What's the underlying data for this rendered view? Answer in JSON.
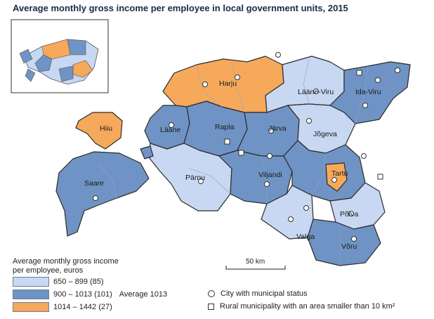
{
  "title": "Average monthly gross income per employee in local government units, 2015",
  "colors": {
    "low": "#c8d7f2",
    "mid": "#6f93c4",
    "high": "#f6a95a",
    "border": "#2b2b2b",
    "muni_border": "#8fa5c6"
  },
  "regions": [
    {
      "name": "Harju",
      "class": "high"
    },
    {
      "name": "Lääne-Viru",
      "class": "low"
    },
    {
      "name": "Ida-Viru",
      "class": "mid"
    },
    {
      "name": "Hiiu",
      "class": "high"
    },
    {
      "name": "Lääne",
      "class": "mid"
    },
    {
      "name": "Rapla",
      "class": "mid"
    },
    {
      "name": "Järva",
      "class": "mid"
    },
    {
      "name": "Jõgeva",
      "class": "low"
    },
    {
      "name": "Saare",
      "class": "mid"
    },
    {
      "name": "Pärnu",
      "class": "low"
    },
    {
      "name": "Viljandi",
      "class": "mid"
    },
    {
      "name": "Tartu",
      "class": "high"
    },
    {
      "name": "Põlva",
      "class": "low"
    },
    {
      "name": "Valga",
      "class": "low"
    },
    {
      "name": "Võru",
      "class": "mid"
    }
  ],
  "legend": {
    "heading_line1": "Average monthly gross income",
    "heading_line2": "per employee, euros",
    "items": [
      {
        "label": "650 –  899  (85)",
        "class": "low"
      },
      {
        "label": "900 – 1013 (101)",
        "class": "mid",
        "note": "Average 1013"
      },
      {
        "label": "1014 – 1442  (27)",
        "class": "high"
      }
    ],
    "symbols": [
      {
        "shape": "circle",
        "label": "City with municipal status"
      },
      {
        "shape": "square",
        "label": "Rural municipality with an area smaller than 10 km²"
      }
    ]
  },
  "scale": {
    "label": "50 km"
  }
}
